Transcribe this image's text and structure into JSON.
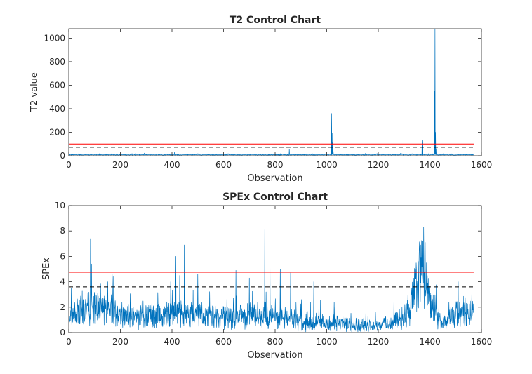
{
  "chart_data": [
    {
      "type": "line",
      "title": "T2 Control Chart",
      "xlabel": "Observation",
      "ylabel": "T2 value",
      "xlim": [
        0,
        1600
      ],
      "ylim": [
        0,
        1080
      ],
      "xticks": [
        "0",
        "200",
        "400",
        "600",
        "800",
        "1000",
        "1200",
        "1400",
        "1600"
      ],
      "yticks": [
        "0",
        "200",
        "400",
        "600",
        "800",
        "1000"
      ],
      "n_observations": 1570,
      "series_color": "#0072BD",
      "limits": [
        {
          "style": "solid",
          "color": "#FF0000",
          "value": 100
        },
        {
          "style": "dashed",
          "color": "#000000",
          "value": 72
        }
      ],
      "baseline": 10,
      "noise": 6,
      "spikes": [
        {
          "x": 258,
          "value": 22
        },
        {
          "x": 410,
          "value": 30
        },
        {
          "x": 855,
          "value": 55
        },
        {
          "x": 1017,
          "value": 80
        },
        {
          "x": 1019,
          "value": 360
        },
        {
          "x": 1021,
          "value": 190
        },
        {
          "x": 1023,
          "value": 110
        },
        {
          "x": 1025,
          "value": 40
        },
        {
          "x": 1370,
          "value": 130
        },
        {
          "x": 1372,
          "value": 80
        },
        {
          "x": 1418,
          "value": 550
        },
        {
          "x": 1420,
          "value": 1080
        },
        {
          "x": 1422,
          "value": 200
        },
        {
          "x": 1424,
          "value": 60
        }
      ]
    },
    {
      "type": "line",
      "title": "SPEx Control Chart",
      "xlabel": "Observation",
      "ylabel": "SPEx",
      "xlim": [
        0,
        1600
      ],
      "ylim": [
        0,
        10
      ],
      "xticks": [
        "0",
        "200",
        "400",
        "600",
        "800",
        "1000",
        "1200",
        "1400",
        "1600"
      ],
      "yticks": [
        "0",
        "2",
        "4",
        "6",
        "8",
        "10"
      ],
      "n_observations": 1570,
      "series_color": "#0072BD",
      "limits": [
        {
          "style": "solid",
          "color": "#FF0000",
          "value": 4.75
        },
        {
          "style": "dashed",
          "color": "#000000",
          "value": 3.6
        }
      ],
      "trend": [
        {
          "x": 0,
          "value": 1.4
        },
        {
          "x": 80,
          "value": 2.2
        },
        {
          "x": 170,
          "value": 1.8
        },
        {
          "x": 250,
          "value": 1.3
        },
        {
          "x": 420,
          "value": 1.7
        },
        {
          "x": 600,
          "value": 1.3
        },
        {
          "x": 760,
          "value": 1.5
        },
        {
          "x": 900,
          "value": 1.0
        },
        {
          "x": 1050,
          "value": 0.8
        },
        {
          "x": 1150,
          "value": 0.6
        },
        {
          "x": 1260,
          "value": 0.9
        },
        {
          "x": 1320,
          "value": 1.8
        },
        {
          "x": 1365,
          "value": 5.5
        },
        {
          "x": 1400,
          "value": 2.5
        },
        {
          "x": 1450,
          "value": 0.7
        },
        {
          "x": 1520,
          "value": 1.8
        },
        {
          "x": 1570,
          "value": 1.6
        }
      ],
      "noise": 1.0,
      "spikes": [
        {
          "x": 10,
          "value": 3.5
        },
        {
          "x": 84,
          "value": 7.4
        },
        {
          "x": 88,
          "value": 5.4
        },
        {
          "x": 168,
          "value": 4.6
        },
        {
          "x": 172,
          "value": 4.4
        },
        {
          "x": 395,
          "value": 4.0
        },
        {
          "x": 415,
          "value": 6.0
        },
        {
          "x": 430,
          "value": 4.5
        },
        {
          "x": 448,
          "value": 6.9
        },
        {
          "x": 500,
          "value": 4.6
        },
        {
          "x": 648,
          "value": 4.9
        },
        {
          "x": 700,
          "value": 4.3
        },
        {
          "x": 760,
          "value": 8.1
        },
        {
          "x": 780,
          "value": 5.1
        },
        {
          "x": 820,
          "value": 5.0
        },
        {
          "x": 860,
          "value": 4.7
        },
        {
          "x": 950,
          "value": 4.0
        },
        {
          "x": 1370,
          "value": 7.2
        },
        {
          "x": 1376,
          "value": 8.3
        },
        {
          "x": 1382,
          "value": 7.1
        },
        {
          "x": 1510,
          "value": 4.0
        }
      ]
    }
  ]
}
